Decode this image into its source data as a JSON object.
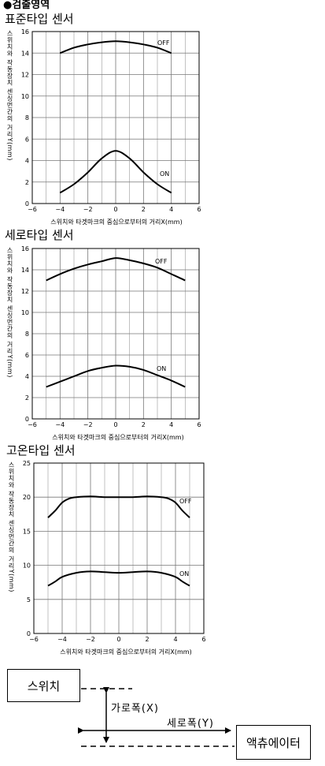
{
  "header": {
    "title": "●검출영역"
  },
  "charts_meta": [
    {
      "section_title": "표준타입 센서"
    },
    {
      "section_title": "세로타입 센서"
    },
    {
      "section_title": "고온타입 센서"
    }
  ],
  "chart_data": [
    {
      "type": "line",
      "title": "표준타입 센서",
      "xlabel": "스위치와 타겟마크의 중심으로부터의 거리X(mm)",
      "ylabel": "스위치와 작동장치 센싱먼간의 거리Y(mm)",
      "xlim": [
        -6,
        6
      ],
      "ylim": [
        0,
        16
      ],
      "xticks": [
        "−6",
        "−4",
        "−2",
        "0",
        "2",
        "4",
        "6"
      ],
      "yticks": [
        "0",
        "2",
        "4",
        "6",
        "8",
        "10",
        "12",
        "14",
        "16"
      ],
      "grid": true,
      "series": [
        {
          "name": "OFF",
          "x": [
            -4,
            -3,
            -2,
            -1,
            0,
            1,
            2,
            3,
            4
          ],
          "y": [
            14.0,
            14.5,
            14.8,
            15.0,
            15.1,
            15.0,
            14.8,
            14.5,
            14.0
          ]
        },
        {
          "name": "ON",
          "x": [
            -4,
            -3,
            -2,
            -1,
            0,
            1,
            2,
            3,
            4
          ],
          "y": [
            1.0,
            1.8,
            2.9,
            4.2,
            4.9,
            4.2,
            2.9,
            1.8,
            1.0
          ]
        }
      ]
    },
    {
      "type": "line",
      "title": "세로타입 센서",
      "xlabel": "스위치와 타겟마크의 중심으로부터의 거리X(mm)",
      "ylabel": "스위치와 작동장치 센싱먼간의 거리Y(mm)",
      "xlim": [
        -6,
        6
      ],
      "ylim": [
        0,
        16
      ],
      "xticks": [
        "−6",
        "−4",
        "−2",
        "0",
        "2",
        "4",
        "6"
      ],
      "yticks": [
        "0",
        "2",
        "4",
        "6",
        "8",
        "10",
        "12",
        "14",
        "16"
      ],
      "grid": true,
      "series": [
        {
          "name": "OFF",
          "x": [
            -5,
            -4,
            -3,
            -2,
            -1,
            0,
            1,
            2,
            3,
            4,
            5
          ],
          "y": [
            13.0,
            13.6,
            14.1,
            14.5,
            14.8,
            15.1,
            14.9,
            14.6,
            14.2,
            13.6,
            13.0
          ]
        },
        {
          "name": "ON",
          "x": [
            -5,
            -4,
            -3,
            -2,
            -1,
            0,
            1,
            2,
            3,
            4,
            5
          ],
          "y": [
            3.0,
            3.5,
            4.0,
            4.5,
            4.8,
            5.0,
            4.9,
            4.6,
            4.1,
            3.6,
            3.0
          ]
        }
      ]
    },
    {
      "type": "line",
      "title": "고온타입 센서",
      "xlabel": "스위치와 타겟마크의 중심으로부터의 거리X(mm)",
      "ylabel": "스위치와 작동장치 센싱먼간의 거리Y(mm)",
      "xlim": [
        -6,
        6
      ],
      "ylim": [
        0,
        25
      ],
      "xticks": [
        "−6",
        "−4",
        "−2",
        "0",
        "2",
        "4",
        "6"
      ],
      "yticks": [
        "0",
        "5",
        "10",
        "15",
        "20",
        "25"
      ],
      "grid": true,
      "series": [
        {
          "name": "OFF",
          "x": [
            -5,
            -4.5,
            -4,
            -3.5,
            -3,
            -2,
            -1,
            0,
            1,
            2,
            3,
            3.5,
            4,
            4.5,
            5
          ],
          "y": [
            17.0,
            18.0,
            19.2,
            19.8,
            20.0,
            20.1,
            20.0,
            20.0,
            20.0,
            20.1,
            20.0,
            19.8,
            19.2,
            18.0,
            17.0
          ]
        },
        {
          "name": "ON",
          "x": [
            -5,
            -4.5,
            -4,
            -3,
            -2,
            -1,
            0,
            1,
            2,
            3,
            4,
            4.5,
            5
          ],
          "y": [
            7.0,
            7.6,
            8.3,
            8.9,
            9.1,
            9.0,
            8.9,
            9.0,
            9.1,
            8.9,
            8.3,
            7.6,
            7.0
          ]
        }
      ]
    }
  ],
  "diagram": {
    "switch_label": "스위치",
    "actuator_label": "액츄에이터",
    "x_axis_label": "가로폭(X)",
    "y_axis_label": "세로폭(Y)"
  }
}
